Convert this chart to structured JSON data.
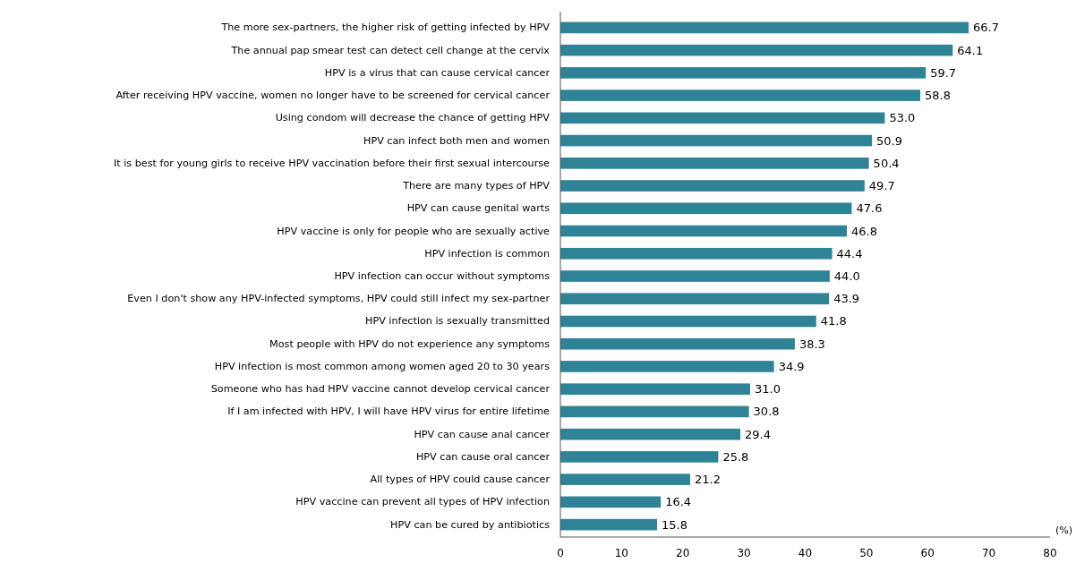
{
  "chart_data": {
    "type": "bar",
    "orientation": "horizontal",
    "xlabel": "(%)",
    "categories": [
      "The more sex-partners, the higher risk of getting infected by HPV",
      "The annual pap smear test can detect cell change at the cervix",
      "HPV is a virus that can cause cervical cancer",
      "After receiving HPV vaccine, women no longer have to be screened for cervical cancer",
      "Using condom will decrease the chance of getting HPV",
      "HPV can infect both men and women",
      "It is best for young girls to receive HPV vaccination before their first sexual intercourse",
      "There are many types of HPV",
      "HPV can cause genital warts",
      "HPV vaccine is only for people who are sexually active",
      "HPV infection is common",
      "HPV infection can occur without symptoms",
      "Even I don't show any HPV-infected symptoms, HPV could still infect my sex-partner",
      "HPV infection is sexually transmitted",
      "Most people with HPV do not experience any symptoms",
      "HPV infection is most common among women aged 20 to 30 years",
      "Someone who has had HPV vaccine cannot develop cervical cancer",
      "If I am infected with HPV, I will have HPV virus for entire lifetime",
      "HPV can cause anal cancer",
      "HPV can cause oral cancer",
      "All types of HPV could cause cancer",
      "HPV vaccine can prevent all types of HPV infection",
      "HPV can be cured by antibiotics"
    ],
    "values": [
      66.7,
      64.1,
      59.7,
      58.8,
      53.0,
      50.9,
      50.4,
      49.7,
      47.6,
      46.8,
      44.4,
      44.0,
      43.9,
      41.8,
      38.3,
      34.9,
      31.0,
      30.8,
      29.4,
      25.8,
      21.2,
      16.4,
      15.8
    ],
    "value_labels": [
      "66.7",
      "64.1",
      "59.7",
      "58.8",
      "53.0",
      "50.9",
      "50.4",
      "49.7",
      "47.6",
      "46.8",
      "44.4",
      "44.0",
      "43.9",
      "41.8",
      "38.3",
      "34.9",
      "31.0",
      "30.8",
      "29.4",
      "25.8",
      "21.2",
      "16.4",
      "15.8"
    ],
    "color": "#2e8397",
    "xlim": [
      0,
      80
    ],
    "xticks": [
      0,
      10,
      20,
      30,
      40,
      50,
      60,
      70,
      80
    ],
    "grid": false
  }
}
